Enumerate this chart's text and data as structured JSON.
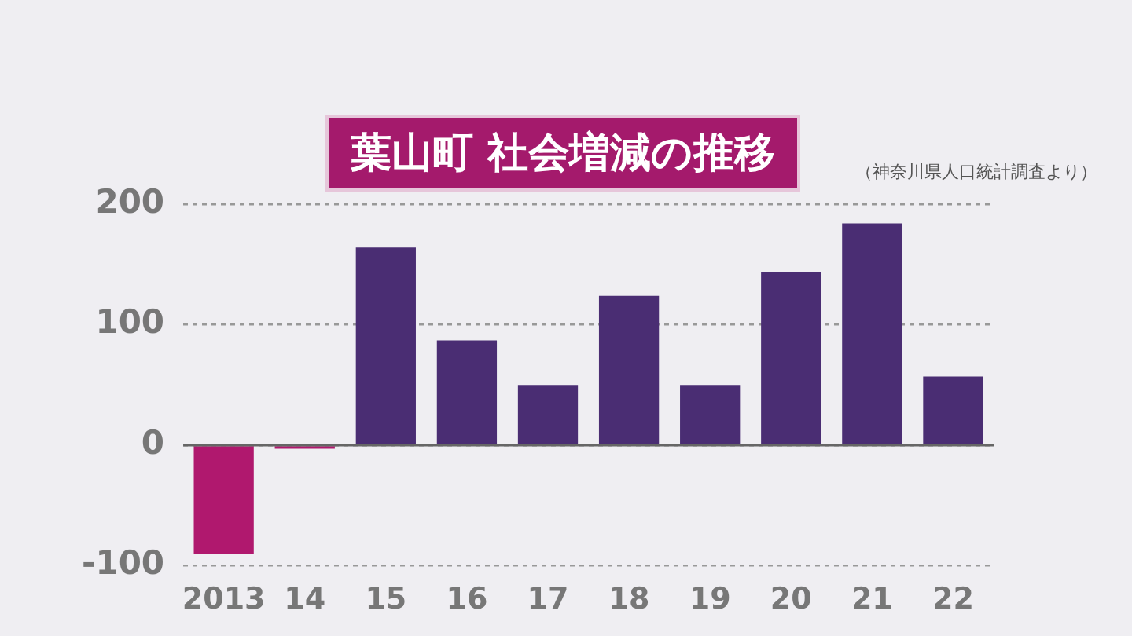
{
  "chart_data": {
    "type": "bar",
    "title": "葉山町 社会増減の推移",
    "annotations": [
      "（神奈川県人口統計調査より）"
    ],
    "categories": [
      "2013",
      "14",
      "15",
      "16",
      "17",
      "18",
      "19",
      "20",
      "21",
      "22"
    ],
    "values": [
      -90,
      -3,
      164,
      87,
      50,
      124,
      50,
      144,
      184,
      57
    ],
    "colors": [
      "#b0186e",
      "#b0186e",
      "#4a2d73",
      "#4a2d73",
      "#4a2d73",
      "#4a2d73",
      "#4a2d73",
      "#4a2d73",
      "#4a2d73",
      "#4a2d73"
    ],
    "ylim": [
      -100,
      200
    ],
    "yticks": [
      -100,
      0,
      100,
      200
    ],
    "grid": "y"
  }
}
